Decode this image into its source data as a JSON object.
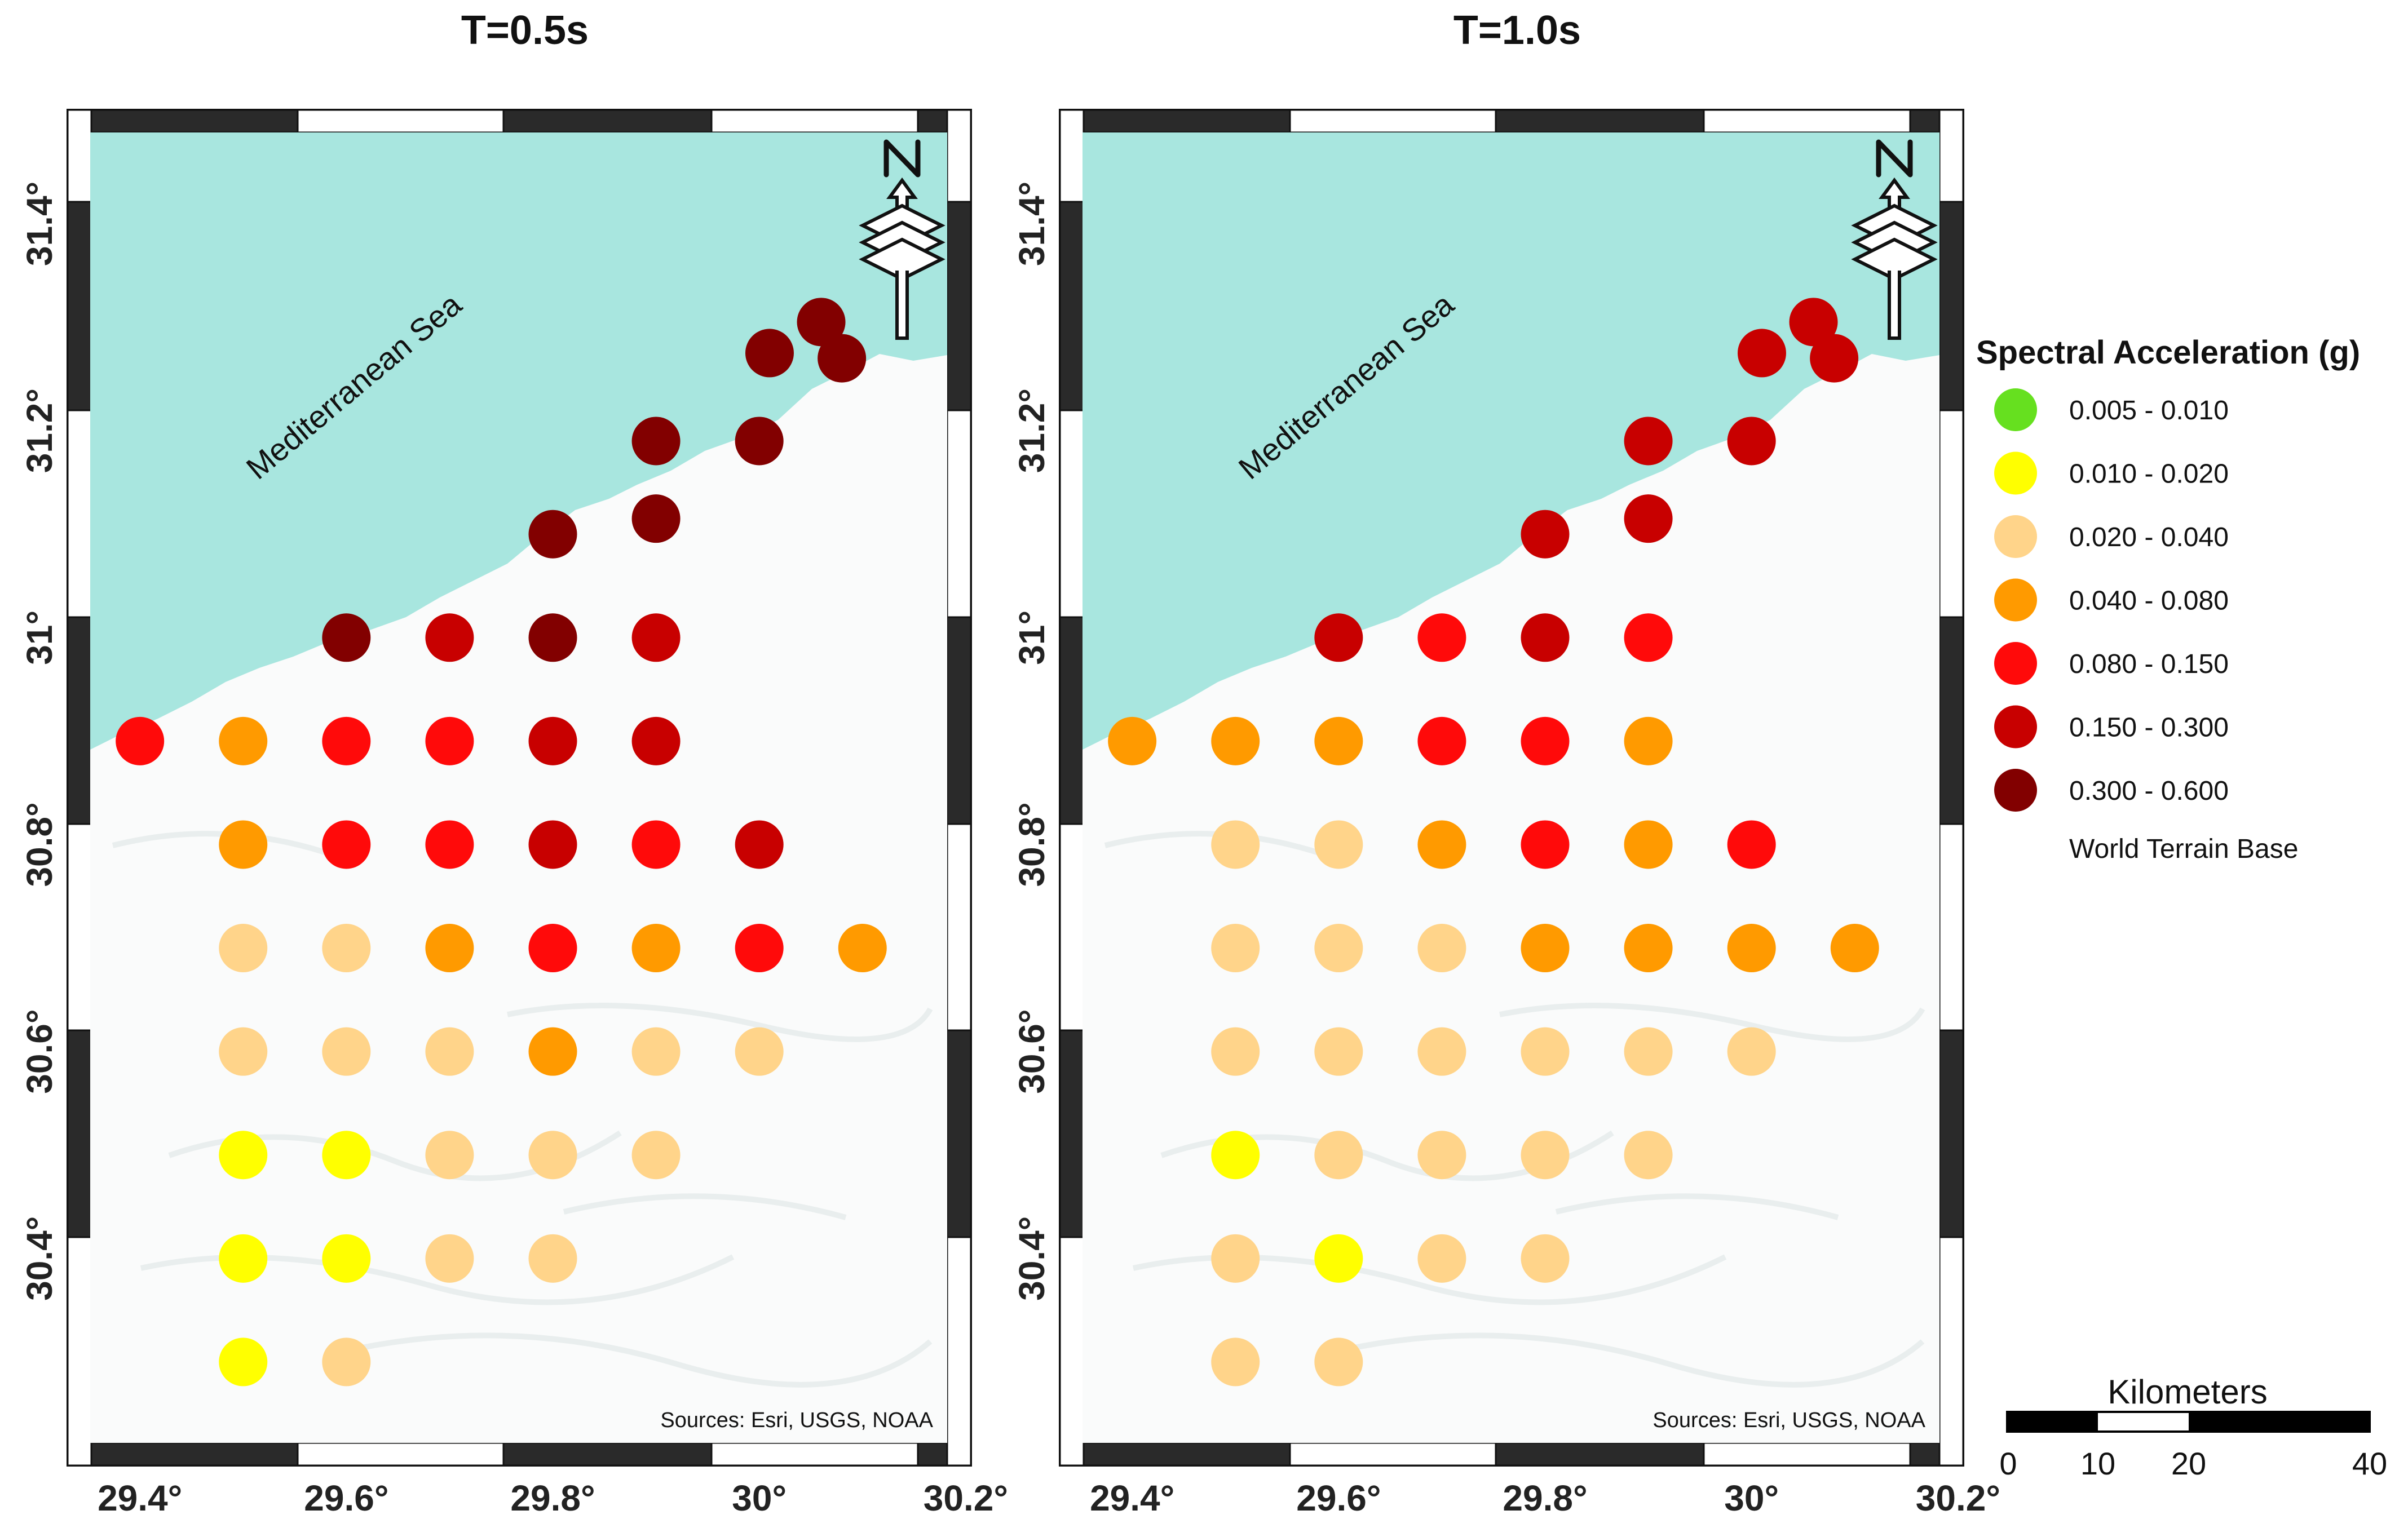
{
  "maps": [
    {
      "title": "T=0.5s",
      "sea_label": "Mediterranean Sea",
      "sources": "Sources: Esri, USGS, NOAA",
      "points": [
        {
          "lon": 29.4,
          "lat": 30.9,
          "cls": 4
        },
        {
          "lon": 29.5,
          "lat": 30.9,
          "cls": 3
        },
        {
          "lon": 29.6,
          "lat": 30.9,
          "cls": 4
        },
        {
          "lon": 29.7,
          "lat": 30.9,
          "cls": 4
        },
        {
          "lon": 29.8,
          "lat": 30.9,
          "cls": 5
        },
        {
          "lon": 29.9,
          "lat": 30.9,
          "cls": 5
        },
        {
          "lon": 29.6,
          "lat": 31.0,
          "cls": 6
        },
        {
          "lon": 29.7,
          "lat": 31.0,
          "cls": 5
        },
        {
          "lon": 29.8,
          "lat": 31.0,
          "cls": 6
        },
        {
          "lon": 29.9,
          "lat": 31.0,
          "cls": 5
        },
        {
          "lon": 29.8,
          "lat": 31.1,
          "cls": 6
        },
        {
          "lon": 29.9,
          "lat": 31.115,
          "cls": 6
        },
        {
          "lon": 29.9,
          "lat": 31.19,
          "cls": 6
        },
        {
          "lon": 30.0,
          "lat": 31.19,
          "cls": 6
        },
        {
          "lon": 30.01,
          "lat": 31.275,
          "cls": 6
        },
        {
          "lon": 30.06,
          "lat": 31.305,
          "cls": 6
        },
        {
          "lon": 30.08,
          "lat": 31.27,
          "cls": 6
        },
        {
          "lon": 29.5,
          "lat": 30.8,
          "cls": 3
        },
        {
          "lon": 29.6,
          "lat": 30.8,
          "cls": 4
        },
        {
          "lon": 29.7,
          "lat": 30.8,
          "cls": 4
        },
        {
          "lon": 29.8,
          "lat": 30.8,
          "cls": 5
        },
        {
          "lon": 29.9,
          "lat": 30.8,
          "cls": 4
        },
        {
          "lon": 30.0,
          "lat": 30.8,
          "cls": 5
        },
        {
          "lon": 29.5,
          "lat": 30.7,
          "cls": 2
        },
        {
          "lon": 29.6,
          "lat": 30.7,
          "cls": 2
        },
        {
          "lon": 29.7,
          "lat": 30.7,
          "cls": 3
        },
        {
          "lon": 29.8,
          "lat": 30.7,
          "cls": 4
        },
        {
          "lon": 29.9,
          "lat": 30.7,
          "cls": 3
        },
        {
          "lon": 30.0,
          "lat": 30.7,
          "cls": 4
        },
        {
          "lon": 30.1,
          "lat": 30.7,
          "cls": 3
        },
        {
          "lon": 29.5,
          "lat": 30.6,
          "cls": 2
        },
        {
          "lon": 29.6,
          "lat": 30.6,
          "cls": 2
        },
        {
          "lon": 29.7,
          "lat": 30.6,
          "cls": 2
        },
        {
          "lon": 29.8,
          "lat": 30.6,
          "cls": 3
        },
        {
          "lon": 29.9,
          "lat": 30.6,
          "cls": 2
        },
        {
          "lon": 30.0,
          "lat": 30.6,
          "cls": 2
        },
        {
          "lon": 29.5,
          "lat": 30.5,
          "cls": 1
        },
        {
          "lon": 29.6,
          "lat": 30.5,
          "cls": 1
        },
        {
          "lon": 29.7,
          "lat": 30.5,
          "cls": 2
        },
        {
          "lon": 29.8,
          "lat": 30.5,
          "cls": 2
        },
        {
          "lon": 29.9,
          "lat": 30.5,
          "cls": 2
        },
        {
          "lon": 29.5,
          "lat": 30.4,
          "cls": 1
        },
        {
          "lon": 29.6,
          "lat": 30.4,
          "cls": 1
        },
        {
          "lon": 29.7,
          "lat": 30.4,
          "cls": 2
        },
        {
          "lon": 29.8,
          "lat": 30.4,
          "cls": 2
        },
        {
          "lon": 29.5,
          "lat": 30.3,
          "cls": 1
        },
        {
          "lon": 29.6,
          "lat": 30.3,
          "cls": 2
        }
      ]
    },
    {
      "title": "T=1.0s",
      "sea_label": "Mediterranean Sea",
      "sources": "Sources: Esri, USGS, NOAA",
      "points": [
        {
          "lon": 29.4,
          "lat": 30.9,
          "cls": 3
        },
        {
          "lon": 29.5,
          "lat": 30.9,
          "cls": 3
        },
        {
          "lon": 29.6,
          "lat": 30.9,
          "cls": 3
        },
        {
          "lon": 29.7,
          "lat": 30.9,
          "cls": 4
        },
        {
          "lon": 29.8,
          "lat": 30.9,
          "cls": 4
        },
        {
          "lon": 29.9,
          "lat": 30.9,
          "cls": 3
        },
        {
          "lon": 29.6,
          "lat": 31.0,
          "cls": 5
        },
        {
          "lon": 29.7,
          "lat": 31.0,
          "cls": 4
        },
        {
          "lon": 29.8,
          "lat": 31.0,
          "cls": 5
        },
        {
          "lon": 29.9,
          "lat": 31.0,
          "cls": 4
        },
        {
          "lon": 29.8,
          "lat": 31.1,
          "cls": 5
        },
        {
          "lon": 29.9,
          "lat": 31.115,
          "cls": 5
        },
        {
          "lon": 29.9,
          "lat": 31.19,
          "cls": 5
        },
        {
          "lon": 30.0,
          "lat": 31.19,
          "cls": 5
        },
        {
          "lon": 30.01,
          "lat": 31.275,
          "cls": 5
        },
        {
          "lon": 30.06,
          "lat": 31.305,
          "cls": 5
        },
        {
          "lon": 30.08,
          "lat": 31.27,
          "cls": 5
        },
        {
          "lon": 29.5,
          "lat": 30.8,
          "cls": 2
        },
        {
          "lon": 29.6,
          "lat": 30.8,
          "cls": 2
        },
        {
          "lon": 29.7,
          "lat": 30.8,
          "cls": 3
        },
        {
          "lon": 29.8,
          "lat": 30.8,
          "cls": 4
        },
        {
          "lon": 29.9,
          "lat": 30.8,
          "cls": 3
        },
        {
          "lon": 30.0,
          "lat": 30.8,
          "cls": 4
        },
        {
          "lon": 29.5,
          "lat": 30.7,
          "cls": 2
        },
        {
          "lon": 29.6,
          "lat": 30.7,
          "cls": 2
        },
        {
          "lon": 29.7,
          "lat": 30.7,
          "cls": 2
        },
        {
          "lon": 29.8,
          "lat": 30.7,
          "cls": 3
        },
        {
          "lon": 29.9,
          "lat": 30.7,
          "cls": 3
        },
        {
          "lon": 30.0,
          "lat": 30.7,
          "cls": 3
        },
        {
          "lon": 30.1,
          "lat": 30.7,
          "cls": 3
        },
        {
          "lon": 29.5,
          "lat": 30.6,
          "cls": 2
        },
        {
          "lon": 29.6,
          "lat": 30.6,
          "cls": 2
        },
        {
          "lon": 29.7,
          "lat": 30.6,
          "cls": 2
        },
        {
          "lon": 29.8,
          "lat": 30.6,
          "cls": 2
        },
        {
          "lon": 29.9,
          "lat": 30.6,
          "cls": 2
        },
        {
          "lon": 30.0,
          "lat": 30.6,
          "cls": 2
        },
        {
          "lon": 29.5,
          "lat": 30.5,
          "cls": 1
        },
        {
          "lon": 29.6,
          "lat": 30.5,
          "cls": 2
        },
        {
          "lon": 29.7,
          "lat": 30.5,
          "cls": 2
        },
        {
          "lon": 29.8,
          "lat": 30.5,
          "cls": 2
        },
        {
          "lon": 29.9,
          "lat": 30.5,
          "cls": 2
        },
        {
          "lon": 29.5,
          "lat": 30.4,
          "cls": 2
        },
        {
          "lon": 29.6,
          "lat": 30.4,
          "cls": 1
        },
        {
          "lon": 29.7,
          "lat": 30.4,
          "cls": 2
        },
        {
          "lon": 29.8,
          "lat": 30.4,
          "cls": 2
        },
        {
          "lon": 29.5,
          "lat": 30.3,
          "cls": 2
        },
        {
          "lon": 29.6,
          "lat": 30.3,
          "cls": 2
        }
      ]
    }
  ],
  "axes": {
    "lon_ticks": [
      "29.4°",
      "29.6°",
      "29.8°",
      "30°",
      "30.2°"
    ],
    "lat_ticks": [
      "30.4°",
      "30.6°",
      "30.8°",
      "31°",
      "31.2°",
      "31.4°"
    ]
  },
  "legend": {
    "title": "Spectral Acceleration (g)",
    "classes": [
      {
        "label": "0.005 - 0.010",
        "color": "#66e01f"
      },
      {
        "label": "0.010 - 0.020",
        "color": "#ffff00"
      },
      {
        "label": "0.020 - 0.040",
        "color": "#ffd48a"
      },
      {
        "label": "0.040 - 0.080",
        "color": "#ff9a00"
      },
      {
        "label": "0.080 - 0.150",
        "color": "#ff0a0a"
      },
      {
        "label": "0.150 - 0.300",
        "color": "#c80000"
      },
      {
        "label": "0.300 - 0.600",
        "color": "#820000"
      }
    ],
    "basemap_label": "World Terrain Base"
  },
  "scale_bar": {
    "title": "Kilometers",
    "ticks": [
      "0",
      "10",
      "20",
      "40"
    ]
  },
  "colors": {
    "sea": "#a8e6df",
    "frame_dark": "#2a2a2a"
  },
  "icons": [
    "north-arrow-icon"
  ]
}
